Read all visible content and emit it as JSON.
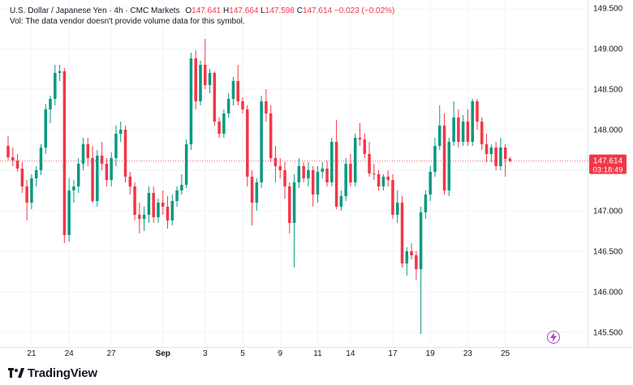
{
  "legend": {
    "symbol": "U.S. Dollar / Japanese Yen · 4h · CMC Markets",
    "o_label": "O",
    "o_value": "147.641",
    "h_label": "H",
    "h_value": "147.664",
    "l_label": "L",
    "l_value": "147.598",
    "c_label": "C",
    "c_value": "147.614",
    "change": "−0.023 (−0.02%)",
    "vol_note": "Vol: The data vendor doesn't provide volume data for this symbol."
  },
  "price_label": {
    "price": "147.614",
    "countdown": "03:18:49"
  },
  "brand": {
    "name": "TradingView"
  },
  "icons": {
    "logo": "tradingview-logo-icon",
    "alert": "lightning-icon"
  },
  "colors": {
    "up": "#089981",
    "down": "#f23645",
    "grid": "#f0f3fa",
    "text": "#131722",
    "axis_text": "#131722"
  },
  "chart_data": {
    "type": "candlestick",
    "title": "",
    "xlabel": "",
    "ylabel": "",
    "ylim": [
      145.35,
      149.6
    ],
    "yticks": [
      "149.500",
      "149.000",
      "148.500",
      "148.000",
      "147.500",
      "147.000",
      "146.500",
      "146.000",
      "145.500"
    ],
    "xticks": [
      {
        "label": "21",
        "bar": 5
      },
      {
        "label": "24",
        "bar": 13
      },
      {
        "label": "27",
        "bar": 22
      },
      {
        "label": "Sep",
        "bar": 33
      },
      {
        "label": "3",
        "bar": 42
      },
      {
        "label": "5",
        "bar": 50
      },
      {
        "label": "9",
        "bar": 58
      },
      {
        "label": "11",
        "bar": 66
      },
      {
        "label": "14",
        "bar": 73
      },
      {
        "label": "17",
        "bar": 82
      },
      {
        "label": "19",
        "bar": 90
      },
      {
        "label": "23",
        "bar": 98
      },
      {
        "label": "25",
        "bar": 106
      }
    ],
    "last_price": 147.614,
    "candles": [
      [
        147.8,
        147.92,
        147.62,
        147.66
      ],
      [
        147.66,
        147.78,
        147.55,
        147.62
      ],
      [
        147.62,
        147.7,
        147.48,
        147.52
      ],
      [
        147.52,
        147.6,
        147.22,
        147.3
      ],
      [
        147.3,
        147.38,
        146.88,
        147.1
      ],
      [
        147.1,
        147.45,
        147.02,
        147.4
      ],
      [
        147.4,
        147.55,
        147.3,
        147.5
      ],
      [
        147.5,
        147.82,
        147.44,
        147.78
      ],
      [
        147.78,
        148.32,
        147.7,
        148.25
      ],
      [
        148.25,
        148.42,
        148.08,
        148.38
      ],
      [
        148.38,
        148.8,
        148.3,
        148.7
      ],
      [
        148.7,
        148.8,
        148.6,
        148.72
      ],
      [
        148.72,
        148.76,
        146.6,
        146.7
      ],
      [
        146.7,
        147.4,
        146.62,
        147.25
      ],
      [
        147.25,
        147.38,
        147.1,
        147.3
      ],
      [
        147.3,
        147.65,
        147.22,
        147.58
      ],
      [
        147.58,
        147.9,
        147.5,
        147.82
      ],
      [
        147.82,
        147.9,
        147.55,
        147.65
      ],
      [
        147.65,
        147.8,
        147.1,
        147.12
      ],
      [
        147.12,
        147.75,
        147.05,
        147.68
      ],
      [
        147.68,
        147.85,
        147.5,
        147.58
      ],
      [
        147.58,
        147.65,
        147.3,
        147.38
      ],
      [
        147.38,
        147.72,
        147.3,
        147.65
      ],
      [
        147.65,
        148.05,
        147.55,
        147.95
      ],
      [
        147.95,
        148.1,
        147.85,
        148.0
      ],
      [
        148.0,
        148.05,
        147.35,
        147.42
      ],
      [
        147.42,
        147.48,
        147.2,
        147.3
      ],
      [
        147.3,
        147.35,
        146.88,
        146.95
      ],
      [
        146.95,
        147.1,
        146.72,
        146.9
      ],
      [
        146.9,
        147.05,
        146.75,
        146.95
      ],
      [
        146.95,
        147.3,
        146.85,
        147.22
      ],
      [
        147.22,
        147.3,
        146.85,
        146.92
      ],
      [
        146.92,
        147.15,
        146.85,
        147.1
      ],
      [
        147.1,
        147.25,
        146.95,
        147.05
      ],
      [
        147.05,
        147.18,
        146.78,
        146.88
      ],
      [
        146.88,
        147.2,
        146.82,
        147.12
      ],
      [
        147.12,
        147.3,
        147.05,
        147.25
      ],
      [
        147.25,
        147.45,
        147.2,
        147.32
      ],
      [
        147.32,
        147.88,
        147.28,
        147.82
      ],
      [
        147.82,
        148.95,
        147.75,
        148.88
      ],
      [
        148.88,
        148.98,
        148.25,
        148.35
      ],
      [
        148.35,
        148.85,
        148.3,
        148.8
      ],
      [
        148.8,
        149.12,
        148.5,
        148.55
      ],
      [
        148.55,
        148.75,
        148.45,
        148.7
      ],
      [
        148.7,
        148.72,
        148.05,
        148.1
      ],
      [
        148.1,
        148.15,
        147.9,
        147.95
      ],
      [
        147.95,
        148.25,
        147.9,
        148.2
      ],
      [
        148.2,
        148.45,
        148.15,
        148.38
      ],
      [
        148.38,
        148.65,
        148.3,
        148.6
      ],
      [
        148.6,
        148.8,
        148.3,
        148.35
      ],
      [
        148.35,
        148.4,
        148.2,
        148.25
      ],
      [
        148.25,
        148.3,
        147.3,
        147.42
      ],
      [
        147.42,
        147.5,
        146.82,
        147.1
      ],
      [
        147.1,
        147.4,
        147.0,
        147.35
      ],
      [
        147.35,
        148.42,
        147.28,
        148.35
      ],
      [
        148.35,
        148.5,
        148.1,
        148.2
      ],
      [
        148.2,
        148.3,
        147.6,
        147.65
      ],
      [
        147.65,
        147.8,
        147.35,
        147.55
      ],
      [
        147.55,
        147.65,
        147.4,
        147.5
      ],
      [
        147.5,
        147.6,
        147.15,
        147.3
      ],
      [
        147.3,
        147.35,
        146.72,
        146.85
      ],
      [
        146.85,
        147.45,
        146.3,
        147.35
      ],
      [
        147.35,
        147.65,
        147.28,
        147.55
      ],
      [
        147.55,
        147.6,
        147.35,
        147.4
      ],
      [
        147.4,
        147.6,
        147.3,
        147.5
      ],
      [
        147.5,
        147.55,
        147.05,
        147.2
      ],
      [
        147.2,
        147.55,
        147.1,
        147.48
      ],
      [
        147.48,
        147.6,
        147.4,
        147.52
      ],
      [
        147.52,
        147.62,
        147.3,
        147.35
      ],
      [
        147.35,
        147.9,
        147.3,
        147.85
      ],
      [
        147.85,
        148.12,
        147.02,
        147.05
      ],
      [
        147.05,
        147.25,
        147.0,
        147.18
      ],
      [
        147.18,
        147.65,
        147.12,
        147.58
      ],
      [
        147.58,
        147.7,
        147.3,
        147.35
      ],
      [
        147.35,
        147.95,
        147.3,
        147.9
      ],
      [
        147.9,
        148.08,
        147.8,
        147.88
      ],
      [
        147.88,
        147.95,
        147.65,
        147.7
      ],
      [
        147.7,
        147.85,
        147.42,
        147.46
      ],
      [
        147.46,
        147.58,
        147.38,
        147.45
      ],
      [
        147.45,
        147.5,
        147.25,
        147.3
      ],
      [
        147.3,
        147.45,
        147.25,
        147.42
      ],
      [
        147.42,
        147.5,
        147.3,
        147.38
      ],
      [
        147.38,
        147.45,
        146.9,
        146.95
      ],
      [
        146.95,
        147.25,
        146.85,
        147.1
      ],
      [
        147.1,
        147.18,
        146.3,
        146.35
      ],
      [
        146.35,
        146.55,
        146.2,
        146.5
      ],
      [
        146.5,
        146.6,
        146.4,
        146.45
      ],
      [
        146.45,
        146.5,
        146.15,
        146.28
      ],
      [
        146.28,
        147.05,
        145.48,
        146.98
      ],
      [
        146.98,
        147.25,
        146.9,
        147.2
      ],
      [
        147.2,
        147.55,
        147.12,
        147.48
      ],
      [
        147.48,
        147.9,
        147.42,
        147.8
      ],
      [
        147.8,
        148.3,
        147.75,
        148.05
      ],
      [
        148.05,
        148.2,
        147.2,
        147.25
      ],
      [
        147.25,
        147.9,
        147.18,
        147.85
      ],
      [
        147.85,
        148.35,
        147.8,
        148.15
      ],
      [
        148.15,
        148.25,
        147.78,
        147.85
      ],
      [
        147.85,
        148.18,
        147.8,
        148.1
      ],
      [
        148.1,
        148.25,
        147.8,
        147.85
      ],
      [
        147.85,
        148.38,
        147.8,
        148.35
      ],
      [
        148.35,
        148.38,
        148.0,
        148.1
      ],
      [
        148.1,
        148.15,
        147.75,
        147.82
      ],
      [
        147.82,
        147.95,
        147.6,
        147.7
      ],
      [
        147.7,
        147.82,
        147.6,
        147.78
      ],
      [
        147.78,
        147.85,
        147.5,
        147.55
      ],
      [
        147.55,
        147.9,
        147.5,
        147.78
      ],
      [
        147.78,
        147.82,
        147.42,
        147.64
      ],
      [
        147.641,
        147.664,
        147.598,
        147.614
      ]
    ]
  }
}
